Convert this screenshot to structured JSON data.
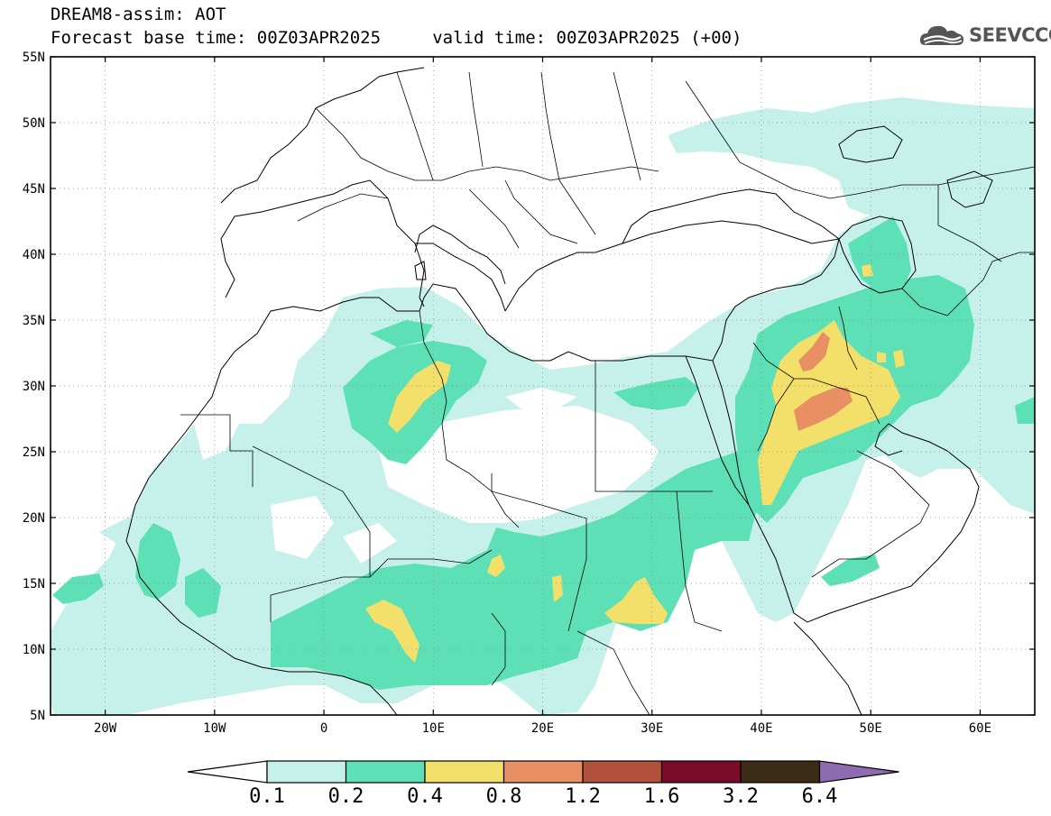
{
  "title": {
    "line1": "DREAM8-assim: AOT",
    "line2": "Forecast base time: 00Z03APR2025     valid time: 00Z03APR2025 (+00)"
  },
  "logo": {
    "text": "SEEVCCC",
    "icon": "cloud-icon"
  },
  "map": {
    "lat_labels": [
      "55N",
      "50N",
      "45N",
      "40N",
      "35N",
      "30N",
      "25N",
      "20N",
      "15N",
      "10N",
      "5N"
    ],
    "lon_labels": [
      "20W",
      "10W",
      "0",
      "10E",
      "20E",
      "30E",
      "40E",
      "50E",
      "60E"
    ],
    "lon_range": [
      -25,
      65
    ],
    "lat_range": [
      5,
      55
    ],
    "frame_color": "#000000"
  },
  "legend": {
    "colors": [
      "#c6f0ea",
      "#5ee0b6",
      "#f3e06a",
      "#e88f63",
      "#b0503d",
      "#7a0b2a",
      "#3b2b17"
    ],
    "under_color": "#ffffff",
    "over_color": "#8e6bb1",
    "labels": [
      "0.1",
      "0.2",
      "0.4",
      "0.8",
      "1.2",
      "1.6",
      "3.2",
      "6.4"
    ]
  }
}
